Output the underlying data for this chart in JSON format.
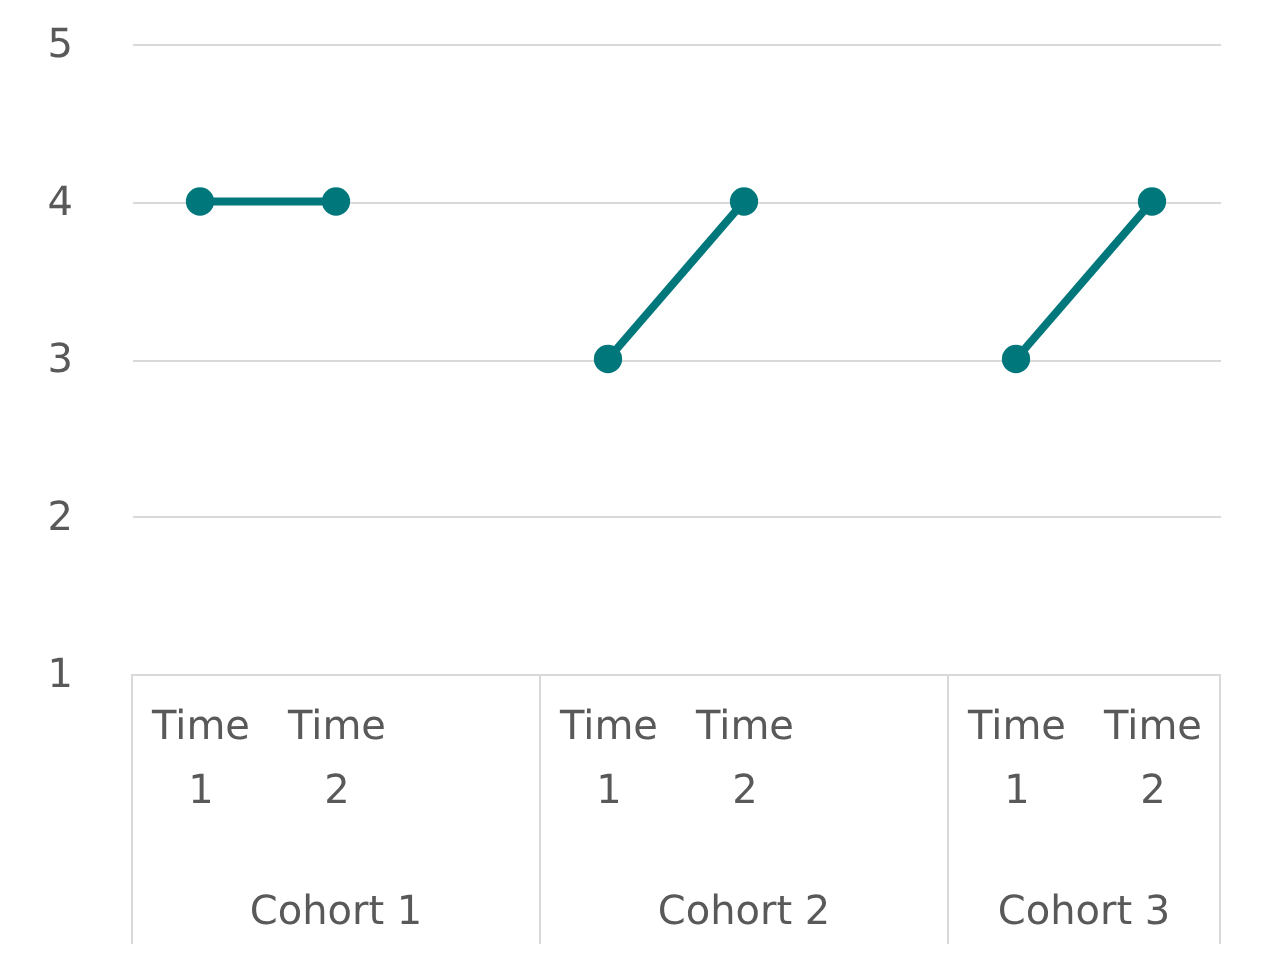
{
  "chart_data": {
    "type": "line",
    "categories": [
      "Time 1",
      "Time 2",
      null,
      "Time 1",
      "Time 2",
      null,
      "Time 1",
      "Time 2"
    ],
    "series": [
      {
        "color": "#00777b",
        "values": [
          4,
          4,
          null,
          3,
          4,
          null,
          3,
          4
        ]
      }
    ],
    "annotations": [
      "Cohort 1",
      "Cohort 2",
      "Cohort 3"
    ],
    "ylim": [
      1,
      5
    ],
    "yticks": [
      1,
      2,
      3,
      4,
      5
    ],
    "grid": "y",
    "marker": "circle",
    "line_style": "solid"
  }
}
